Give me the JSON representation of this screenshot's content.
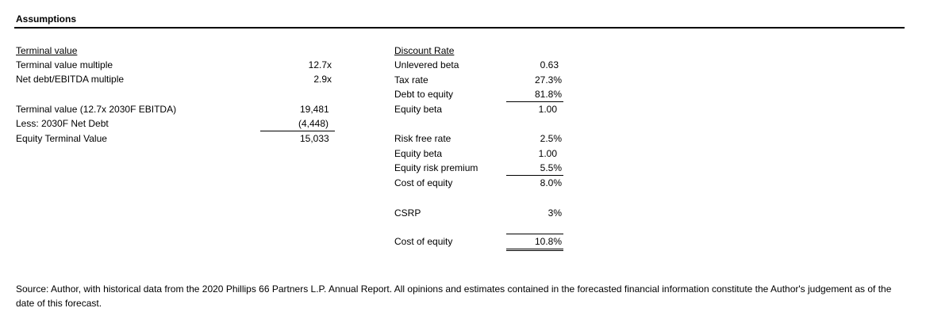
{
  "title": "Assumptions",
  "terminal_value": {
    "header": "Terminal value",
    "rows": [
      {
        "label": "Terminal value multiple",
        "value": "12.7x"
      },
      {
        "label": "Net debt/EBITDA multiple",
        "value": "2.9x"
      },
      {
        "label": "Terminal value (12.7x 2030F EBITDA)",
        "value": "19,481"
      },
      {
        "label": "Less: 2030F Net Debt",
        "value": "(4,448)"
      },
      {
        "label": "Equity Terminal Value",
        "value": "15,033"
      }
    ]
  },
  "discount_rate": {
    "header": "Discount Rate",
    "rows": [
      {
        "label": "Unlevered beta",
        "value": "0.63"
      },
      {
        "label": "Tax rate",
        "value": "27.3%"
      },
      {
        "label": "Debt to equity",
        "value": "81.8%"
      },
      {
        "label": "Equity beta",
        "value": "1.00"
      },
      {
        "label": "Risk free rate",
        "value": "2.5%"
      },
      {
        "label": "Equity beta",
        "value": "1.00"
      },
      {
        "label": "Equity risk premium",
        "value": "5.5%"
      },
      {
        "label": "Cost of equity",
        "value": "8.0%"
      },
      {
        "label": "CSRP",
        "value": "3%"
      },
      {
        "label": "Cost of equity",
        "value": "10.8%"
      }
    ]
  },
  "footnote": "Source: Author, with historical data from the 2020 Phillips 66 Partners L.P. Annual Report. All opinions and estimates contained in the forecasted financial information constitute the Author's judgement as of the date of this forecast."
}
